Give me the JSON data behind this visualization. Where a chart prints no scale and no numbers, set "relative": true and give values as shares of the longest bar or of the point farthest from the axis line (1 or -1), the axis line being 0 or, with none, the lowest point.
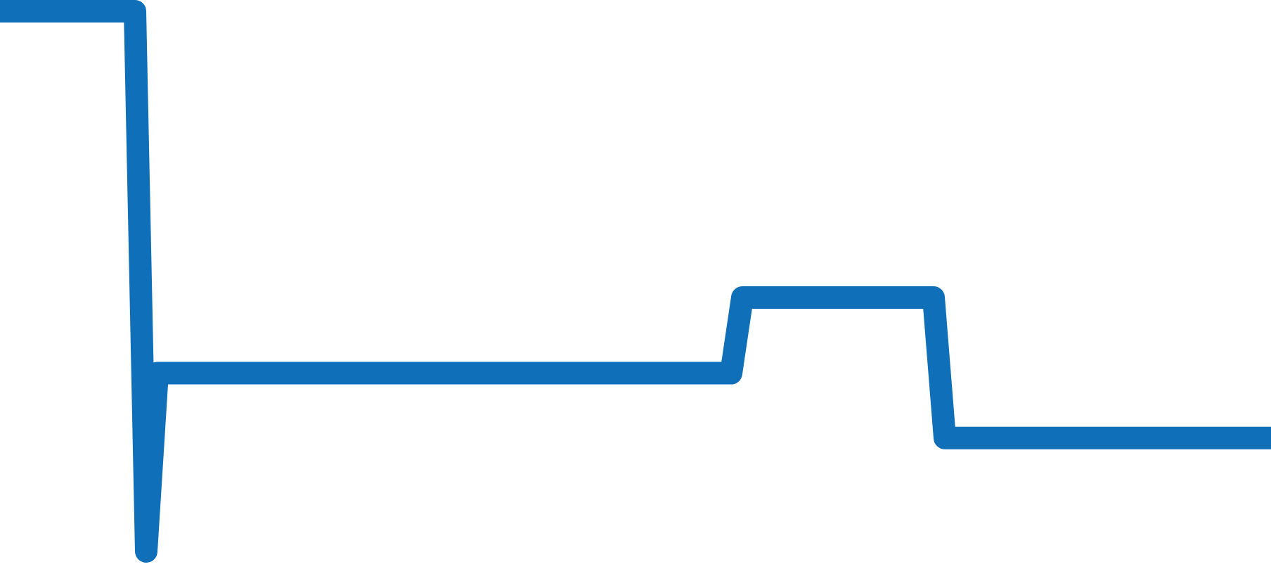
{
  "chart_data": {
    "type": "line",
    "relative": true,
    "legend": false,
    "grid": false,
    "marker": "none",
    "line_style": "solid",
    "categories": [
      null,
      null,
      null,
      null,
      null,
      null,
      null,
      null,
      null,
      null,
      null,
      null,
      null,
      null,
      null,
      null,
      null,
      null,
      null,
      null,
      null,
      null,
      null,
      null,
      null,
      null,
      null,
      null,
      null,
      null,
      null,
      null,
      null,
      null,
      null,
      null,
      null,
      null,
      null,
      null,
      null,
      null,
      null,
      null,
      null,
      null,
      null,
      null,
      null,
      null,
      null,
      null,
      null,
      null,
      null,
      null,
      null,
      null,
      null,
      null,
      null,
      null,
      null,
      null,
      null,
      null,
      null,
      null,
      null,
      null,
      null,
      null,
      null,
      null,
      null,
      null,
      null,
      null,
      null,
      null,
      null,
      null,
      null,
      null,
      null,
      null,
      null,
      null,
      null,
      null,
      null,
      null,
      null,
      null,
      null,
      null,
      null,
      null,
      null,
      null,
      null,
      null,
      null,
      null,
      null,
      null,
      null,
      null,
      null,
      null,
      null,
      null,
      null,
      null
    ],
    "series": [
      {
        "color": "#0f6fb8",
        "values": [
          1,
          1,
          1,
          1,
          1,
          1,
          1,
          1,
          1,
          1,
          1,
          1,
          1,
          0,
          0.33,
          0.33,
          0.33,
          0.33,
          0.33,
          0.33,
          0.33,
          0.33,
          0.33,
          0.33,
          0.33,
          0.33,
          0.33,
          0.33,
          0.33,
          0.33,
          0.33,
          0.33,
          0.33,
          0.33,
          0.33,
          0.33,
          0.33,
          0.33,
          0.33,
          0.33,
          0.33,
          0.33,
          0.33,
          0.33,
          0.33,
          0.33,
          0.33,
          0.33,
          0.33,
          0.33,
          0.33,
          0.33,
          0.33,
          0.33,
          0.33,
          0.33,
          0.33,
          0.33,
          0.33,
          0.33,
          0.33,
          0.33,
          0.33,
          0.33,
          0.33,
          0.33,
          0.47,
          0.47,
          0.47,
          0.47,
          0.47,
          0.47,
          0.47,
          0.47,
          0.47,
          0.47,
          0.47,
          0.47,
          0.47,
          0.47,
          0.47,
          0.47,
          0.47,
          0.47,
          0.21,
          0.21,
          0.21,
          0.21,
          0.21,
          0.21,
          0.21,
          0.21,
          0.21,
          0.21,
          0.21,
          0.21,
          0.21,
          0.21,
          0.21,
          0.21,
          0.21,
          0.21,
          0.21,
          0.21,
          0.21,
          0.21,
          0.21,
          0.21,
          0.21,
          0.21,
          0.21,
          0.21,
          0.21,
          0.21
        ]
      }
    ]
  }
}
